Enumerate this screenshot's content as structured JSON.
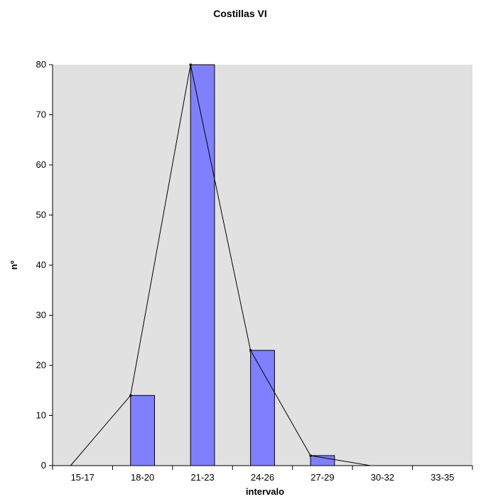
{
  "chart_data": {
    "type": "bar",
    "title": "Costillas VI",
    "xlabel": "intervalo",
    "ylabel": "nº",
    "categories": [
      "15-17",
      "18-20",
      "21-23",
      "24-26",
      "27-29",
      "30-32",
      "33-35"
    ],
    "series": [
      {
        "type": "bar",
        "values": [
          0,
          14,
          80,
          23,
          2,
          0,
          0
        ]
      },
      {
        "type": "line",
        "values": [
          0,
          14,
          80,
          23,
          2,
          0,
          0
        ]
      }
    ],
    "ylim": [
      0,
      80
    ],
    "yticks": [
      0,
      10,
      20,
      30,
      40,
      50,
      60,
      70,
      80
    ],
    "grid": false,
    "colors": {
      "plot_background": "#e1e1e1",
      "bar_fill": "#8080ff",
      "bar_stroke": "#000000",
      "line": "#000000"
    }
  }
}
